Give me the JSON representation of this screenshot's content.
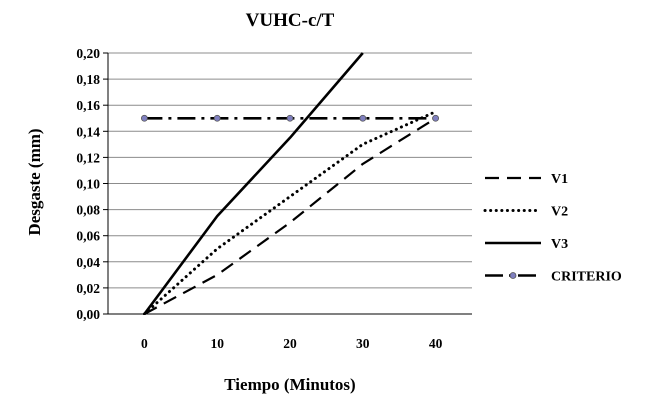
{
  "chart_data": {
    "type": "line",
    "title": "VUHC-c/T",
    "xlabel": "Tiempo (Minutos)",
    "ylabel": "Desgaste (mm)",
    "xlim": [
      -5,
      45
    ],
    "ylim": [
      0,
      0.2
    ],
    "x_ticks": [
      "0",
      "10",
      "20",
      "30",
      "40"
    ],
    "y_ticks": [
      "0,00",
      "0,02",
      "0,04",
      "0,06",
      "0,08",
      "0,10",
      "0,12",
      "0,14",
      "0,16",
      "0,18",
      "0,20"
    ],
    "grid": "horizontal",
    "legend_position": "right",
    "series": [
      {
        "name": "V1",
        "style": "dashed",
        "color": "#000000",
        "x": [
          0,
          10,
          20,
          30,
          40
        ],
        "y": [
          0.0,
          0.03,
          0.07,
          0.115,
          0.15
        ]
      },
      {
        "name": "V2",
        "style": "dotted",
        "color": "#000000",
        "x": [
          0,
          10,
          20,
          30,
          40
        ],
        "y": [
          0.0,
          0.05,
          0.09,
          0.13,
          0.155
        ]
      },
      {
        "name": "V3",
        "style": "solid",
        "color": "#000000",
        "x": [
          0,
          10,
          20,
          30
        ],
        "y": [
          0.0,
          0.075,
          0.135,
          0.2
        ]
      },
      {
        "name": "CRITERIO",
        "style": "dash-dot",
        "color": "#000000",
        "marker_color": "#8080c0",
        "x": [
          0,
          10,
          20,
          30,
          40
        ],
        "y": [
          0.15,
          0.15,
          0.15,
          0.15,
          0.15
        ]
      }
    ]
  }
}
